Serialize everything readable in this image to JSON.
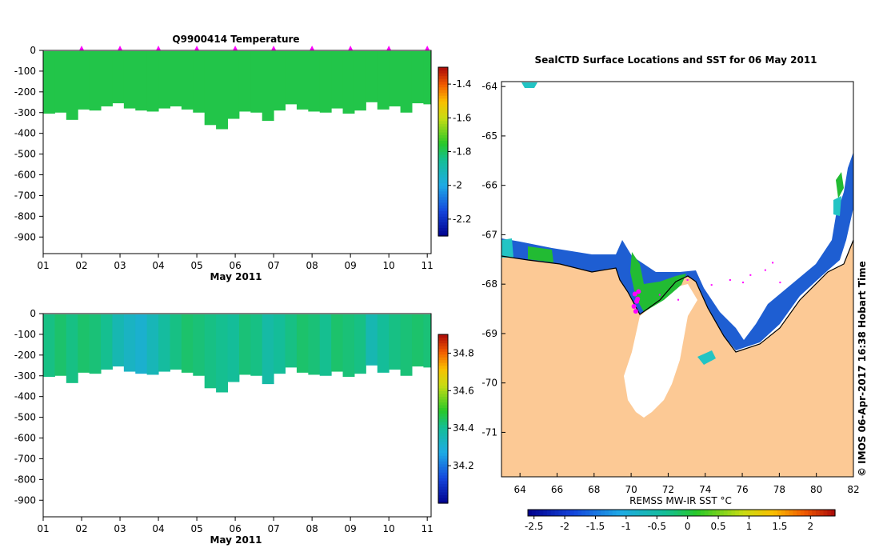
{
  "chart_data": [
    {
      "type": "heatmap",
      "title": "Q9900414  Temperature",
      "xlabel": "May 2011",
      "ylabel": "",
      "x_ticks": [
        "01",
        "02",
        "03",
        "04",
        "05",
        "06",
        "07",
        "08",
        "09",
        "10",
        "11"
      ],
      "y_ticks": [
        0,
        -100,
        -200,
        -300,
        -400,
        -500,
        -600,
        -700,
        -800,
        -900
      ],
      "ylim": [
        -980,
        0
      ],
      "xlim": [
        1,
        11.1
      ],
      "profile_markers_day": [
        2,
        3,
        4,
        5,
        6,
        7,
        8,
        9,
        10,
        11
      ],
      "colorbar": {
        "min": -2.3,
        "max": -1.3,
        "ticks": [
          "-1.4",
          "-1.6",
          "-1.8",
          "-2",
          "-2.2"
        ],
        "tick_values": [
          -1.4,
          -1.6,
          -1.8,
          -2,
          -2.2
        ]
      },
      "profiles_day": [
        1.0,
        1.3,
        1.6,
        1.9,
        2.2,
        2.5,
        2.8,
        3.1,
        3.4,
        3.7,
        4.0,
        4.3,
        4.6,
        4.9,
        5.2,
        5.5,
        5.8,
        6.1,
        6.4,
        6.7,
        7.0,
        7.3,
        7.6,
        7.9,
        8.2,
        8.5,
        8.8,
        9.1,
        9.4,
        9.7,
        10.0,
        10.3,
        10.6,
        10.9
      ],
      "profile_depths_m": [
        305,
        300,
        335,
        285,
        290,
        270,
        255,
        280,
        290,
        295,
        280,
        270,
        285,
        300,
        360,
        380,
        330,
        295,
        300,
        340,
        290,
        260,
        285,
        295,
        300,
        280,
        305,
        290,
        250,
        285,
        270,
        300,
        255,
        260
      ],
      "values": [
        -1.78,
        -1.78,
        -1.78,
        -1.78,
        -1.78,
        -1.78,
        -1.78,
        -1.78,
        -1.78,
        -1.78,
        -1.78,
        -1.78,
        -1.78,
        -1.78,
        -1.78,
        -1.78,
        -1.78,
        -1.78,
        -1.78,
        -1.78,
        -1.78,
        -1.78,
        -1.78,
        -1.78,
        -1.78,
        -1.78,
        -1.78,
        -1.78,
        -1.78,
        -1.78,
        -1.78,
        -1.78,
        -1.78,
        -1.78
      ]
    },
    {
      "type": "heatmap",
      "title": "",
      "xlabel": "May 2011",
      "ylabel": "",
      "x_ticks": [
        "01",
        "02",
        "03",
        "04",
        "05",
        "06",
        "07",
        "08",
        "09",
        "10",
        "11"
      ],
      "y_ticks": [
        0,
        -100,
        -200,
        -300,
        -400,
        -500,
        -600,
        -700,
        -800,
        -900
      ],
      "ylim": [
        -980,
        0
      ],
      "xlim": [
        1,
        11.1
      ],
      "colorbar": {
        "min": 34.0,
        "max": 34.9,
        "ticks": [
          "34.8",
          "34.6",
          "34.4",
          "34.2"
        ],
        "tick_values": [
          34.8,
          34.6,
          34.4,
          34.2
        ]
      },
      "profiles_day": [
        1.0,
        1.3,
        1.6,
        1.9,
        2.2,
        2.5,
        2.8,
        3.1,
        3.4,
        3.7,
        4.0,
        4.3,
        4.6,
        4.9,
        5.2,
        5.5,
        5.8,
        6.1,
        6.4,
        6.7,
        7.0,
        7.3,
        7.6,
        7.9,
        8.2,
        8.5,
        8.8,
        9.1,
        9.4,
        9.7,
        10.0,
        10.3,
        10.6,
        10.9
      ],
      "profile_depths_m": [
        305,
        300,
        335,
        285,
        290,
        270,
        255,
        280,
        290,
        295,
        280,
        270,
        285,
        300,
        360,
        380,
        330,
        295,
        300,
        340,
        290,
        260,
        285,
        295,
        300,
        280,
        305,
        290,
        250,
        285,
        270,
        300,
        255,
        260
      ],
      "values": [
        34.42,
        34.44,
        34.42,
        34.44,
        34.43,
        34.41,
        34.36,
        34.33,
        34.31,
        34.35,
        34.39,
        34.42,
        34.44,
        34.43,
        34.42,
        34.41,
        34.4,
        34.43,
        34.42,
        34.38,
        34.4,
        34.42,
        34.44,
        34.43,
        34.41,
        34.44,
        34.43,
        34.42,
        34.36,
        34.4,
        34.42,
        34.43,
        34.44,
        34.43
      ]
    },
    {
      "type": "map",
      "title": "SealCTD Surface Locations and SST for 06 May 2011",
      "xlabel": "",
      "x_ticks": [
        "64",
        "66",
        "68",
        "70",
        "72",
        "74",
        "76",
        "78",
        "80",
        "82"
      ],
      "x_tick_values": [
        64,
        66,
        68,
        70,
        72,
        74,
        76,
        78,
        80,
        82
      ],
      "y_ticks": [
        "-64",
        "-65",
        "-66",
        "-67",
        "-68",
        "-69",
        "-70",
        "-71"
      ],
      "y_tick_values": [
        -64,
        -65,
        -66,
        -67,
        -68,
        -69,
        -70,
        -71
      ],
      "xlim": [
        63,
        82
      ],
      "ylim": [
        -71.9,
        -63.9
      ],
      "colorbar": {
        "label": "REMSS MW-IR SST °C",
        "min": -2.6,
        "max": 2.4,
        "ticks": [
          "-2.5",
          "-2",
          "-1.5",
          "-1",
          "-0.5",
          "0",
          "0.5",
          "1",
          "1.5",
          "2"
        ],
        "tick_values": [
          -2.5,
          -2,
          -1.5,
          -1,
          -0.5,
          0,
          0.5,
          1,
          1.5,
          2
        ]
      },
      "seal_positions": [
        [
          70.2,
          -68.2
        ],
        [
          70.3,
          -68.35
        ],
        [
          70.15,
          -68.45
        ],
        [
          70.25,
          -68.55
        ],
        [
          70.35,
          -68.3
        ],
        [
          70.4,
          -68.15
        ]
      ],
      "credit": "© IMOS 06-Apr-2017 16:38 Hobart Time"
    }
  ],
  "colors": {
    "land": "#fcc995",
    "ice_shelf": "#ffffff",
    "marker": "#ff00ff"
  }
}
